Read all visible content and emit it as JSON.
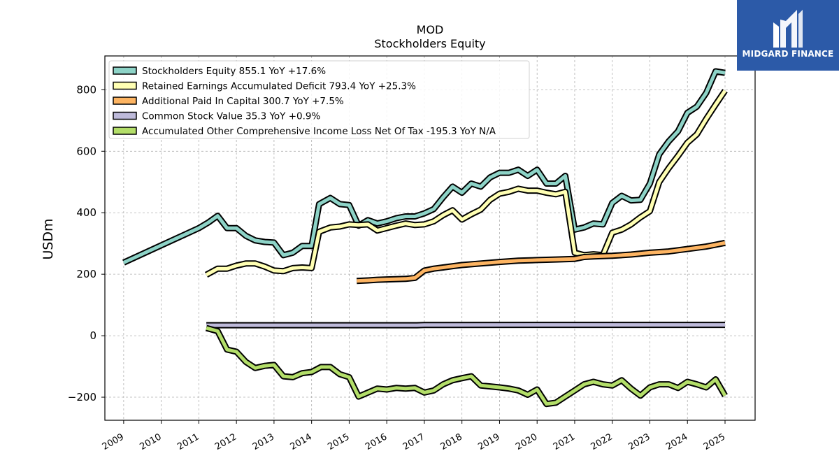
{
  "chart_data": {
    "type": "line",
    "title": "MOD",
    "subtitle": "Stockholders  Equity",
    "ylabel": "USDm",
    "xlim": [
      2008.5,
      2025.8
    ],
    "ylim": [
      -275,
      910
    ],
    "yticks": [
      -200,
      0,
      200,
      400,
      600,
      800
    ],
    "xticks": [
      "2009",
      "2010",
      "2011",
      "2012",
      "2013",
      "2014",
      "2015",
      "2016",
      "2017",
      "2018",
      "2019",
      "2020",
      "2021",
      "2022",
      "2023",
      "2024",
      "2025"
    ],
    "grid": true,
    "legend_position": "top-left",
    "series": [
      {
        "name": "Stockholders Equity  855.1 YoY +17.6%",
        "color": "#8dd3c7",
        "points": [
          [
            2009.0,
            238
          ],
          [
            2011.0,
            350
          ],
          [
            2011.25,
            368
          ],
          [
            2011.5,
            390
          ],
          [
            2011.75,
            350
          ],
          [
            2012.0,
            350
          ],
          [
            2012.25,
            325
          ],
          [
            2012.5,
            310
          ],
          [
            2012.75,
            305
          ],
          [
            2013.0,
            303
          ],
          [
            2013.25,
            262
          ],
          [
            2013.5,
            270
          ],
          [
            2013.75,
            292
          ],
          [
            2014.0,
            292
          ],
          [
            2014.2,
            428
          ],
          [
            2014.5,
            448
          ],
          [
            2014.75,
            428
          ],
          [
            2015.0,
            425
          ],
          [
            2015.25,
            358
          ],
          [
            2015.5,
            376
          ],
          [
            2015.75,
            365
          ],
          [
            2016.0,
            372
          ],
          [
            2016.25,
            382
          ],
          [
            2016.5,
            388
          ],
          [
            2016.75,
            388
          ],
          [
            2017.0,
            398
          ],
          [
            2017.25,
            412
          ],
          [
            2017.5,
            450
          ],
          [
            2017.75,
            485
          ],
          [
            2018.0,
            465
          ],
          [
            2018.25,
            495
          ],
          [
            2018.5,
            485
          ],
          [
            2018.75,
            515
          ],
          [
            2019.0,
            530
          ],
          [
            2019.25,
            530
          ],
          [
            2019.5,
            540
          ],
          [
            2019.75,
            520
          ],
          [
            2020.0,
            540
          ],
          [
            2020.25,
            495
          ],
          [
            2020.5,
            495
          ],
          [
            2020.75,
            520
          ],
          [
            2021.0,
            345
          ],
          [
            2021.25,
            352
          ],
          [
            2021.5,
            365
          ],
          [
            2021.75,
            362
          ],
          [
            2022.0,
            432
          ],
          [
            2022.25,
            455
          ],
          [
            2022.5,
            440
          ],
          [
            2022.75,
            442
          ],
          [
            2023.0,
            495
          ],
          [
            2023.25,
            590
          ],
          [
            2023.5,
            632
          ],
          [
            2023.75,
            665
          ],
          [
            2024.0,
            725
          ],
          [
            2024.25,
            745
          ],
          [
            2024.5,
            790
          ],
          [
            2024.75,
            860
          ],
          [
            2025.0,
            855
          ]
        ]
      },
      {
        "name": "Retained Earnings Accumulated Deficit  793.4 YoY +25.3%",
        "color": "#ffffb3",
        "points": [
          [
            2011.2,
            198
          ],
          [
            2011.5,
            218
          ],
          [
            2011.75,
            218
          ],
          [
            2012.0,
            228
          ],
          [
            2012.25,
            235
          ],
          [
            2012.5,
            235
          ],
          [
            2012.75,
            225
          ],
          [
            2013.0,
            212
          ],
          [
            2013.25,
            210
          ],
          [
            2013.5,
            220
          ],
          [
            2013.75,
            222
          ],
          [
            2014.0,
            220
          ],
          [
            2014.2,
            338
          ],
          [
            2014.5,
            352
          ],
          [
            2014.75,
            355
          ],
          [
            2015.0,
            362
          ],
          [
            2015.25,
            360
          ],
          [
            2015.5,
            362
          ],
          [
            2015.75,
            342
          ],
          [
            2016.0,
            350
          ],
          [
            2016.25,
            358
          ],
          [
            2016.5,
            365
          ],
          [
            2016.75,
            360
          ],
          [
            2017.0,
            362
          ],
          [
            2017.25,
            372
          ],
          [
            2017.5,
            392
          ],
          [
            2017.75,
            408
          ],
          [
            2018.0,
            378
          ],
          [
            2018.25,
            395
          ],
          [
            2018.5,
            410
          ],
          [
            2018.75,
            442
          ],
          [
            2019.0,
            462
          ],
          [
            2019.25,
            468
          ],
          [
            2019.5,
            478
          ],
          [
            2019.75,
            472
          ],
          [
            2020.0,
            472
          ],
          [
            2020.25,
            465
          ],
          [
            2020.5,
            460
          ],
          [
            2020.75,
            468
          ],
          [
            2021.0,
            270
          ],
          [
            2021.25,
            262
          ],
          [
            2021.5,
            265
          ],
          [
            2021.75,
            262
          ],
          [
            2022.0,
            335
          ],
          [
            2022.25,
            345
          ],
          [
            2022.5,
            362
          ],
          [
            2022.75,
            385
          ],
          [
            2023.0,
            405
          ],
          [
            2023.25,
            500
          ],
          [
            2023.5,
            545
          ],
          [
            2023.75,
            585
          ],
          [
            2024.0,
            628
          ],
          [
            2024.25,
            655
          ],
          [
            2024.5,
            705
          ],
          [
            2024.75,
            752
          ],
          [
            2025.0,
            797
          ]
        ]
      },
      {
        "name": "Additional Paid In Capital  300.7 YoY +7.5%",
        "color": "#fdb462",
        "points": [
          [
            2015.2,
            178
          ],
          [
            2015.5,
            180
          ],
          [
            2015.75,
            182
          ],
          [
            2016.0,
            183
          ],
          [
            2016.5,
            185
          ],
          [
            2016.75,
            188
          ],
          [
            2017.0,
            212
          ],
          [
            2017.25,
            218
          ],
          [
            2017.5,
            222
          ],
          [
            2017.75,
            226
          ],
          [
            2018.0,
            230
          ],
          [
            2018.5,
            235
          ],
          [
            2019.0,
            240
          ],
          [
            2019.5,
            244
          ],
          [
            2020.0,
            246
          ],
          [
            2020.5,
            248
          ],
          [
            2021.0,
            250
          ],
          [
            2021.25,
            256
          ],
          [
            2021.5,
            258
          ],
          [
            2022.0,
            260
          ],
          [
            2022.5,
            264
          ],
          [
            2023.0,
            270
          ],
          [
            2023.5,
            274
          ],
          [
            2024.0,
            282
          ],
          [
            2024.5,
            290
          ],
          [
            2024.75,
            296
          ],
          [
            2025.0,
            302
          ]
        ]
      },
      {
        "name": "Common Stock Value  35.3 YoY +0.9%",
        "color": "#bebada",
        "points": [
          [
            2011.2,
            34
          ],
          [
            2016.8,
            34
          ],
          [
            2017.0,
            35
          ],
          [
            2025.0,
            35.3
          ]
        ]
      },
      {
        "name": "Accumulated Other Comprehensive Income Loss Net Of Tax  -195.3 YoY N/A",
        "color": "#b3de69",
        "points": [
          [
            2011.2,
            25
          ],
          [
            2011.5,
            15
          ],
          [
            2011.75,
            -45
          ],
          [
            2012.0,
            -52
          ],
          [
            2012.25,
            -85
          ],
          [
            2012.5,
            -105
          ],
          [
            2012.75,
            -98
          ],
          [
            2013.0,
            -95
          ],
          [
            2013.25,
            -132
          ],
          [
            2013.5,
            -135
          ],
          [
            2013.75,
            -122
          ],
          [
            2014.0,
            -118
          ],
          [
            2014.25,
            -102
          ],
          [
            2014.5,
            -102
          ],
          [
            2014.75,
            -125
          ],
          [
            2015.0,
            -135
          ],
          [
            2015.25,
            -198
          ],
          [
            2015.5,
            -185
          ],
          [
            2015.75,
            -172
          ],
          [
            2016.0,
            -175
          ],
          [
            2016.25,
            -170
          ],
          [
            2016.5,
            -172
          ],
          [
            2016.75,
            -170
          ],
          [
            2017.0,
            -185
          ],
          [
            2017.25,
            -178
          ],
          [
            2017.5,
            -158
          ],
          [
            2017.75,
            -145
          ],
          [
            2018.0,
            -138
          ],
          [
            2018.25,
            -132
          ],
          [
            2018.5,
            -162
          ],
          [
            2018.75,
            -165
          ],
          [
            2019.0,
            -168
          ],
          [
            2019.25,
            -172
          ],
          [
            2019.5,
            -178
          ],
          [
            2019.75,
            -192
          ],
          [
            2020.0,
            -175
          ],
          [
            2020.25,
            -222
          ],
          [
            2020.5,
            -218
          ],
          [
            2020.75,
            -198
          ],
          [
            2021.0,
            -178
          ],
          [
            2021.25,
            -158
          ],
          [
            2021.5,
            -150
          ],
          [
            2021.75,
            -158
          ],
          [
            2022.0,
            -162
          ],
          [
            2022.25,
            -145
          ],
          [
            2022.5,
            -172
          ],
          [
            2022.75,
            -195
          ],
          [
            2023.0,
            -168
          ],
          [
            2023.25,
            -158
          ],
          [
            2023.5,
            -158
          ],
          [
            2023.75,
            -170
          ],
          [
            2024.0,
            -150
          ],
          [
            2024.25,
            -158
          ],
          [
            2024.5,
            -168
          ],
          [
            2024.75,
            -142
          ],
          [
            2025.0,
            -195
          ]
        ]
      }
    ]
  },
  "logo": {
    "text": "MIDGARD FINANCE"
  }
}
